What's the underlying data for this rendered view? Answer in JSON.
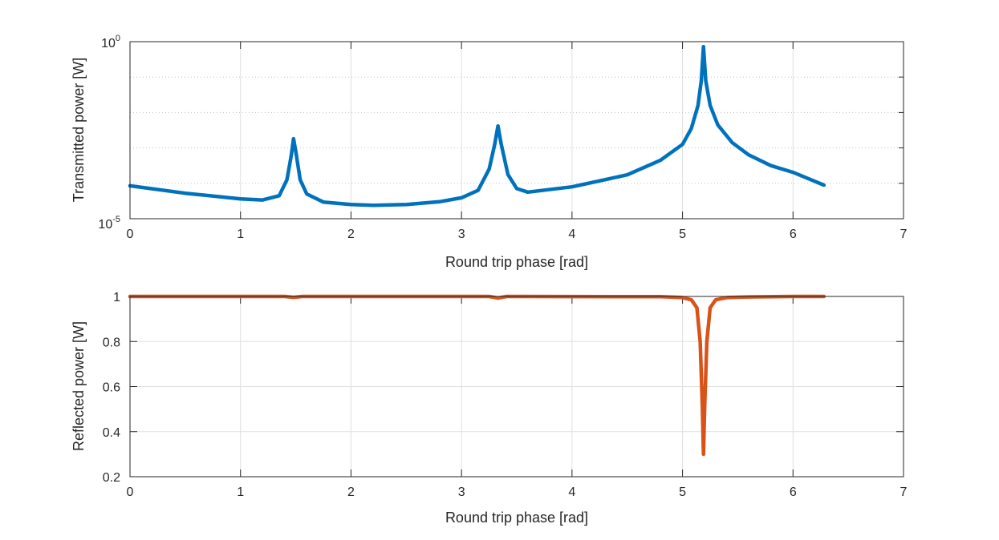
{
  "figure": {
    "background": "#ffffff",
    "axis_color": "#262626",
    "grid_color": "#dfdfdf"
  },
  "chart_data": [
    {
      "type": "line",
      "title": "",
      "xlabel": "Round trip phase [rad]",
      "ylabel": "Transmitted power [W]",
      "xlim": [
        0,
        7
      ],
      "ylim": [
        1e-05,
        1
      ],
      "yscale": "log",
      "grid": true,
      "minor_grid": true,
      "xticks": [
        "0",
        "1",
        "2",
        "3",
        "4",
        "5",
        "6",
        "7"
      ],
      "yticks": [
        {
          "base": "10",
          "exp": "-5"
        },
        {
          "base": "10",
          "exp": "0"
        }
      ],
      "series": [
        {
          "name": "Transmitted",
          "color": "#0072BD",
          "x": [
            0,
            0.5,
            1.0,
            1.2,
            1.35,
            1.42,
            1.46,
            1.48,
            1.5,
            1.54,
            1.6,
            1.75,
            2.0,
            2.2,
            2.5,
            2.8,
            3.0,
            3.15,
            3.25,
            3.3,
            3.33,
            3.36,
            3.42,
            3.5,
            3.6,
            4.0,
            4.5,
            4.8,
            5.0,
            5.08,
            5.14,
            5.17,
            5.19,
            5.21,
            5.25,
            5.32,
            5.45,
            5.6,
            5.8,
            6.0,
            6.28
          ],
          "y_log10": [
            -4.07,
            -4.28,
            -4.44,
            -4.47,
            -4.35,
            -3.9,
            -3.2,
            -2.74,
            -3.1,
            -3.9,
            -4.3,
            -4.53,
            -4.6,
            -4.62,
            -4.6,
            -4.52,
            -4.41,
            -4.2,
            -3.6,
            -2.9,
            -2.38,
            -2.9,
            -3.75,
            -4.15,
            -4.25,
            -4.1,
            -3.76,
            -3.35,
            -2.9,
            -2.45,
            -1.8,
            -1.1,
            -0.14,
            -1.1,
            -1.8,
            -2.35,
            -2.85,
            -3.2,
            -3.5,
            -3.69,
            -4.05
          ]
        }
      ]
    },
    {
      "type": "line",
      "title": "",
      "xlabel": "Round trip phase [rad]",
      "ylabel": "Reflected power [W]",
      "xlim": [
        0,
        7
      ],
      "ylim": [
        0.2,
        1
      ],
      "yscale": "linear",
      "grid": true,
      "xticks": [
        "0",
        "1",
        "2",
        "3",
        "4",
        "5",
        "6",
        "7"
      ],
      "yticks": [
        "0.2",
        "0.4",
        "0.6",
        "0.8",
        "1"
      ],
      "series": [
        {
          "name": "Reflected",
          "color": "#D95319",
          "x": [
            0,
            1.4,
            1.48,
            1.56,
            3.25,
            3.33,
            3.41,
            4.8,
            5.0,
            5.08,
            5.13,
            5.16,
            5.18,
            5.19,
            5.2,
            5.22,
            5.25,
            5.3,
            5.4,
            5.6,
            6.0,
            6.28
          ],
          "y": [
            1.0,
            1.0,
            0.996,
            1.0,
            1.0,
            0.993,
            1.0,
            0.999,
            0.995,
            0.985,
            0.95,
            0.8,
            0.5,
            0.3,
            0.5,
            0.8,
            0.95,
            0.985,
            0.995,
            0.998,
            1.0,
            1.0
          ]
        }
      ]
    }
  ]
}
